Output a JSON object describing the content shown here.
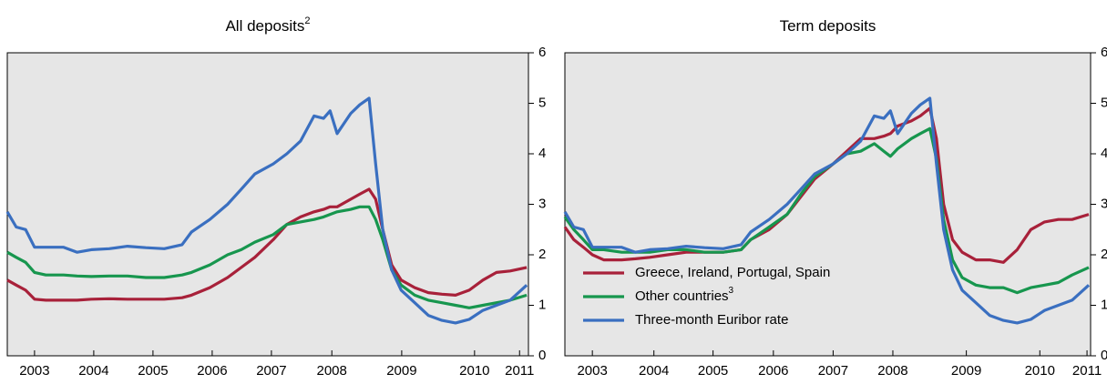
{
  "chart_data": [
    {
      "type": "line",
      "title": "All deposits",
      "title_footnote": "2",
      "x": [
        2003.0,
        2003.15,
        2003.31,
        2003.46,
        2003.65,
        2003.95,
        2004.18,
        2004.42,
        2004.72,
        2005.03,
        2005.34,
        2005.65,
        2005.95,
        2006.11,
        2006.42,
        2006.72,
        2006.95,
        2007.18,
        2007.49,
        2007.72,
        2007.95,
        2008.18,
        2008.34,
        2008.45,
        2008.57,
        2008.8,
        2008.95,
        2009.11,
        2009.22,
        2009.34,
        2009.49,
        2009.65,
        2009.88,
        2010.11,
        2010.34,
        2010.57,
        2010.8,
        2011.03,
        2011.26,
        2011.49,
        2011.77
      ],
      "series": [
        {
          "color": "#a8213a",
          "values": [
            1.5,
            1.4,
            1.3,
            1.12,
            1.1,
            1.1,
            1.1,
            1.12,
            1.13,
            1.12,
            1.12,
            1.12,
            1.15,
            1.2,
            1.35,
            1.55,
            1.75,
            1.95,
            2.3,
            2.6,
            2.75,
            2.85,
            2.9,
            2.95,
            2.95,
            3.1,
            3.2,
            3.3,
            3.1,
            2.5,
            1.8,
            1.5,
            1.35,
            1.25,
            1.22,
            1.2,
            1.3,
            1.5,
            1.65,
            1.68,
            1.75
          ]
        },
        {
          "color": "#17964e",
          "values": [
            2.05,
            1.95,
            1.85,
            1.65,
            1.6,
            1.6,
            1.58,
            1.57,
            1.58,
            1.58,
            1.55,
            1.55,
            1.6,
            1.65,
            1.8,
            2.0,
            2.1,
            2.25,
            2.4,
            2.6,
            2.65,
            2.7,
            2.75,
            2.8,
            2.85,
            2.9,
            2.95,
            2.95,
            2.7,
            2.3,
            1.7,
            1.4,
            1.2,
            1.1,
            1.05,
            1.0,
            0.95,
            1.0,
            1.05,
            1.1,
            1.2
          ]
        },
        {
          "color": "#3a6fc0",
          "values": [
            2.85,
            2.55,
            2.5,
            2.15,
            2.15,
            2.15,
            2.05,
            2.1,
            2.12,
            2.17,
            2.14,
            2.12,
            2.2,
            2.45,
            2.7,
            3.0,
            3.3,
            3.6,
            3.8,
            4.0,
            4.25,
            4.75,
            4.7,
            4.85,
            4.4,
            4.8,
            4.97,
            5.1,
            3.8,
            2.5,
            1.7,
            1.3,
            1.05,
            0.8,
            0.7,
            0.65,
            0.72,
            0.9,
            1.0,
            1.1,
            1.4
          ]
        }
      ],
      "xlim": [
        2003,
        2011.8
      ],
      "ylim": [
        0,
        6
      ],
      "yticks": [
        0,
        1,
        2,
        3,
        4,
        5,
        6
      ],
      "xticks": [
        {
          "value": 2003.46,
          "label": "2003"
        },
        {
          "value": 2004.46,
          "label": "2004"
        },
        {
          "value": 2005.46,
          "label": "2005"
        },
        {
          "value": 2006.46,
          "label": "2006"
        },
        {
          "value": 2007.46,
          "label": "2007"
        },
        {
          "value": 2008.48,
          "label": "2008"
        },
        {
          "value": 2009.66,
          "label": "2009"
        },
        {
          "value": 2010.89,
          "label": "2010"
        },
        {
          "value": 2011.65,
          "label": "2011"
        }
      ]
    },
    {
      "type": "line",
      "title": "Term deposits",
      "x": [
        2003.0,
        2003.15,
        2003.31,
        2003.46,
        2003.65,
        2003.95,
        2004.18,
        2004.42,
        2004.72,
        2005.03,
        2005.34,
        2005.65,
        2005.95,
        2006.11,
        2006.42,
        2006.72,
        2006.95,
        2007.18,
        2007.49,
        2007.72,
        2007.95,
        2008.18,
        2008.34,
        2008.45,
        2008.57,
        2008.8,
        2008.95,
        2009.11,
        2009.22,
        2009.34,
        2009.49,
        2009.65,
        2009.88,
        2010.11,
        2010.34,
        2010.57,
        2010.8,
        2011.03,
        2011.26,
        2011.49,
        2011.77
      ],
      "series": [
        {
          "name": "Greece, Ireland, Portugal, Spain",
          "color": "#a8213a",
          "values": [
            2.55,
            2.3,
            2.15,
            2.0,
            1.9,
            1.9,
            1.92,
            1.95,
            2.0,
            2.05,
            2.05,
            2.05,
            2.1,
            2.3,
            2.5,
            2.8,
            3.15,
            3.5,
            3.8,
            4.05,
            4.3,
            4.3,
            4.35,
            4.4,
            4.55,
            4.65,
            4.75,
            4.9,
            4.3,
            3.0,
            2.3,
            2.05,
            1.9,
            1.9,
            1.85,
            2.1,
            2.5,
            2.65,
            2.7,
            2.7,
            2.8
          ]
        },
        {
          "name": "Other countries",
          "name_footnote": "3",
          "color": "#17964e",
          "values": [
            2.75,
            2.5,
            2.3,
            2.1,
            2.1,
            2.05,
            2.05,
            2.05,
            2.1,
            2.1,
            2.05,
            2.05,
            2.1,
            2.3,
            2.55,
            2.8,
            3.2,
            3.55,
            3.8,
            4.0,
            4.05,
            4.2,
            4.05,
            3.95,
            4.1,
            4.3,
            4.4,
            4.5,
            3.9,
            2.7,
            1.9,
            1.55,
            1.4,
            1.35,
            1.35,
            1.25,
            1.35,
            1.4,
            1.45,
            1.6,
            1.75
          ]
        },
        {
          "name": "Three-month Euribor rate",
          "color": "#3a6fc0",
          "values": [
            2.85,
            2.55,
            2.5,
            2.15,
            2.15,
            2.15,
            2.05,
            2.1,
            2.12,
            2.17,
            2.14,
            2.12,
            2.2,
            2.45,
            2.7,
            3.0,
            3.3,
            3.6,
            3.8,
            4.0,
            4.25,
            4.75,
            4.7,
            4.85,
            4.4,
            4.8,
            4.97,
            5.1,
            3.8,
            2.5,
            1.7,
            1.3,
            1.05,
            0.8,
            0.7,
            0.65,
            0.72,
            0.9,
            1.0,
            1.1,
            1.4
          ]
        }
      ],
      "xlim": [
        2003,
        2011.8
      ],
      "ylim": [
        0,
        6
      ],
      "yticks": [
        0,
        1,
        2,
        3,
        4,
        5,
        6
      ],
      "xticks": [
        {
          "value": 2003.46,
          "label": "2003"
        },
        {
          "value": 2004.49,
          "label": "2004"
        },
        {
          "value": 2005.48,
          "label": "2005"
        },
        {
          "value": 2006.49,
          "label": "2006"
        },
        {
          "value": 2007.49,
          "label": "2007"
        },
        {
          "value": 2008.49,
          "label": "2008"
        },
        {
          "value": 2009.72,
          "label": "2009"
        },
        {
          "value": 2010.95,
          "label": "2010"
        },
        {
          "value": 2011.74,
          "label": "2011"
        }
      ],
      "legend": "lower left"
    }
  ]
}
